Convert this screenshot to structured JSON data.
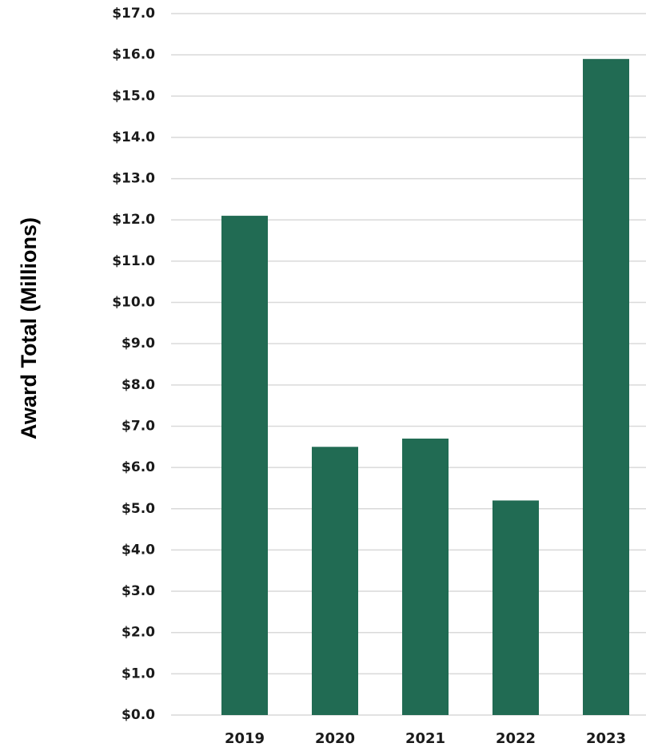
{
  "chart_data": {
    "type": "bar",
    "categories": [
      "2019",
      "2020",
      "2021",
      "2022",
      "2023"
    ],
    "values": [
      12.1,
      6.5,
      6.7,
      5.2,
      15.9
    ],
    "title": "",
    "xlabel": "",
    "ylabel": "Award Total (Millions)",
    "ylim": [
      0,
      17
    ],
    "yticks": [
      0,
      1,
      2,
      3,
      4,
      5,
      6,
      7,
      8,
      9,
      10,
      11,
      12,
      13,
      14,
      15,
      16,
      17
    ],
    "ytick_labels": [
      "$0.0",
      "$1.0",
      "$2.0",
      "$3.0",
      "$4.0",
      "$5.0",
      "$6.0",
      "$7.0",
      "$8.0",
      "$9.0",
      "$10.0",
      "$11.0",
      "$12.0",
      "$13.0",
      "$14.0",
      "$15.0",
      "$16.0",
      "$17.0"
    ],
    "grid": true,
    "bar_color": "#216b53",
    "grid_color": "#d9d9d9"
  }
}
